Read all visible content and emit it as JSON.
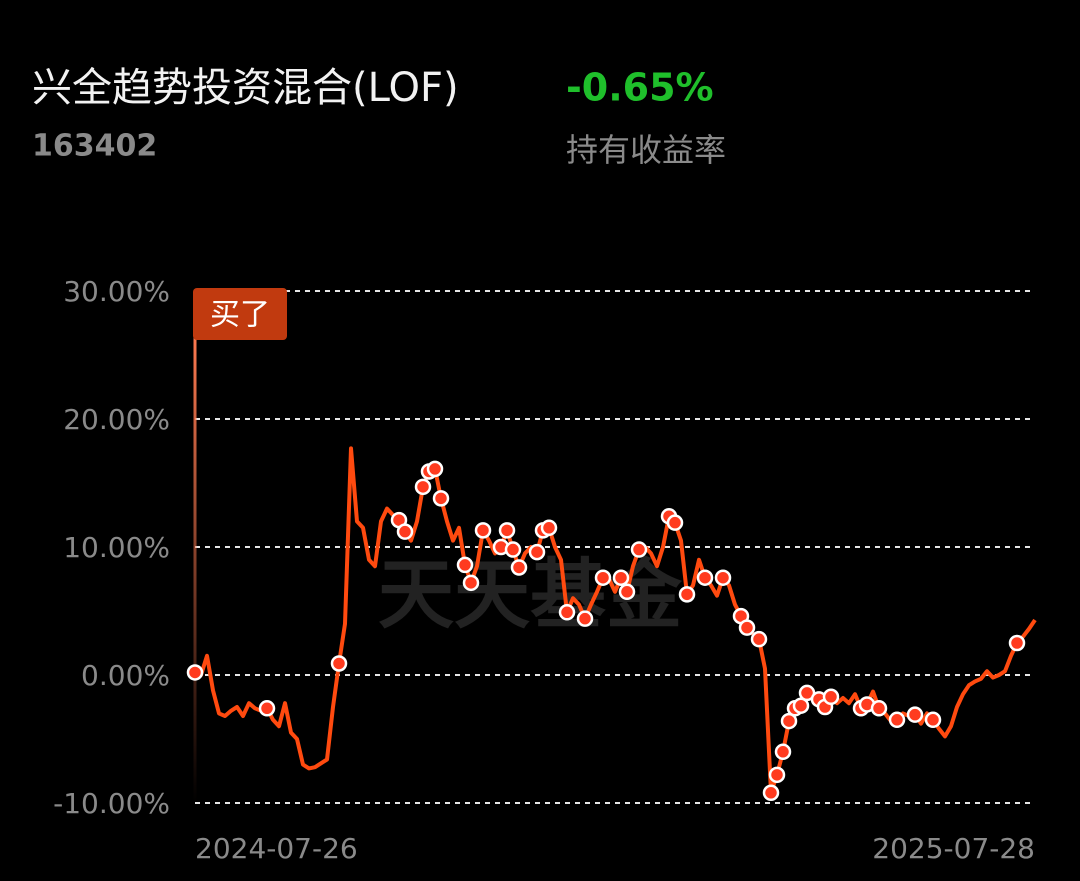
{
  "header": {
    "name": "兴全趋势投资混合(LOF)",
    "code": "163402",
    "return": "-0.65%",
    "return_label": "持有收益率"
  },
  "chart_data": {
    "type": "line",
    "watermark": "天天基金",
    "annotation": "买了",
    "ylim": [
      -10,
      30
    ],
    "yticks": [
      {
        "value": 30,
        "label": "30.00%"
      },
      {
        "value": 20,
        "label": "20.00%"
      },
      {
        "value": 10,
        "label": "10.00%"
      },
      {
        "value": 0,
        "label": "0.00%"
      },
      {
        "value": -10,
        "label": "-10.00%"
      }
    ],
    "grid": true,
    "categories": [
      "2024-07-26",
      null,
      null,
      null,
      null,
      null,
      null,
      null,
      null,
      null,
      null,
      null,
      null,
      null,
      null,
      null,
      null,
      null,
      null,
      null,
      null,
      null,
      null,
      null,
      null,
      null,
      null,
      null,
      null,
      null,
      null,
      null,
      null,
      null,
      null,
      null,
      null,
      null,
      null,
      null,
      null,
      null,
      null,
      null,
      null,
      null,
      null,
      null,
      null,
      null,
      null,
      null,
      null,
      null,
      null,
      null,
      null,
      null,
      null,
      null,
      null,
      null,
      null,
      null,
      null,
      null,
      null,
      null,
      null,
      null,
      null,
      null,
      null,
      null,
      null,
      null,
      null,
      null,
      null,
      null,
      null,
      null,
      null,
      null,
      null,
      null,
      null,
      null,
      null,
      null,
      null,
      null,
      null,
      null,
      null,
      null,
      null,
      null,
      null,
      null,
      null,
      null,
      null,
      null,
      null,
      null,
      null,
      null,
      null,
      null,
      null,
      null,
      null,
      null,
      null,
      null,
      null,
      null,
      null,
      null,
      null,
      null,
      null,
      null,
      null,
      null,
      null,
      null,
      null,
      null,
      null,
      null,
      null,
      null,
      null,
      null,
      null,
      null,
      null,
      null,
      "2025-07-28"
    ],
    "series": [
      {
        "color": "#ff4a0f",
        "style": "line",
        "values": [
          0.2,
          0,
          1.5,
          -1.2,
          -3,
          -3.2,
          -2.8,
          -2.5,
          -3.2,
          -2.2,
          -2.6,
          -2.8,
          -2.6,
          -3.5,
          -4,
          -2.2,
          -4.5,
          -5,
          -7,
          -7.3,
          -7.2,
          -6.9,
          -6.6,
          -2.5,
          0.9,
          4,
          17.7,
          12,
          11.5,
          9,
          8.5,
          12,
          13,
          12.5,
          12.1,
          11.2,
          10.5,
          12,
          14.7,
          15.9,
          16.1,
          13.8,
          12,
          10.5,
          11.5,
          8.6,
          7.2,
          8.5,
          11.3,
          10.5,
          9.5,
          10,
          11.3,
          9.8,
          8.4,
          9.5,
          10,
          9.6,
          11.3,
          11.5,
          10,
          9,
          4.9,
          6,
          5.5,
          4.4,
          5.5,
          6.5,
          7.6,
          7.5,
          6.5,
          7.6,
          6.5,
          8.5,
          9.8,
          10,
          9.5,
          8.5,
          10,
          12.4,
          11.9,
          10.5,
          6.3,
          7,
          9,
          7.6,
          7,
          6.2,
          7.6,
          7,
          5.5,
          4.6,
          3.7,
          3.2,
          2.8,
          0.5,
          -9.2,
          -7.8,
          -6,
          -3.6,
          -2.6,
          -2.4,
          -1.4,
          -1.7,
          -1.9,
          -2.5,
          -1.7,
          -2.2,
          -1.8,
          -2.2,
          -1.5,
          -2.6,
          -2.3,
          -1.3,
          -2.6,
          -3,
          -3.6,
          -3.5,
          -3,
          -3.2,
          -3.1,
          -3.8,
          -3,
          -3.5,
          -4.2,
          -4.8,
          -4,
          -2.5,
          -1.5,
          -0.8,
          -0.5,
          -0.3,
          0.3,
          -0.2,
          0,
          0.3,
          1.5,
          2.5,
          3,
          3.6,
          4.3
        ]
      },
      {
        "color": "#ff3b1f",
        "style": "dots",
        "values": [
          0.2,
          null,
          null,
          null,
          null,
          null,
          null,
          null,
          null,
          null,
          null,
          null,
          -2.6,
          null,
          null,
          null,
          null,
          null,
          null,
          null,
          null,
          null,
          null,
          null,
          0.9,
          null,
          null,
          null,
          null,
          null,
          null,
          null,
          null,
          null,
          12.1,
          11.2,
          null,
          null,
          14.7,
          15.9,
          16.1,
          13.8,
          null,
          null,
          null,
          8.6,
          7.2,
          null,
          11.3,
          null,
          null,
          10,
          11.3,
          9.8,
          8.4,
          null,
          null,
          9.6,
          11.3,
          11.5,
          null,
          null,
          4.9,
          null,
          null,
          4.4,
          null,
          null,
          7.6,
          null,
          null,
          7.6,
          6.5,
          null,
          9.8,
          null,
          null,
          null,
          null,
          12.4,
          11.9,
          null,
          6.3,
          null,
          null,
          7.6,
          null,
          null,
          7.6,
          null,
          null,
          4.6,
          3.7,
          null,
          2.8,
          null,
          -9.2,
          -7.8,
          -6,
          -3.6,
          -2.6,
          -2.4,
          -1.4,
          null,
          -1.9,
          -2.5,
          -1.7,
          null,
          null,
          null,
          null,
          -2.6,
          -2.3,
          null,
          -2.6,
          null,
          null,
          -3.5,
          null,
          null,
          -3.1,
          null,
          null,
          -3.5,
          null,
          null,
          null,
          null,
          null,
          null,
          null,
          null,
          null,
          null,
          null,
          null,
          null,
          2.5,
          null,
          null,
          null
        ]
      }
    ]
  }
}
